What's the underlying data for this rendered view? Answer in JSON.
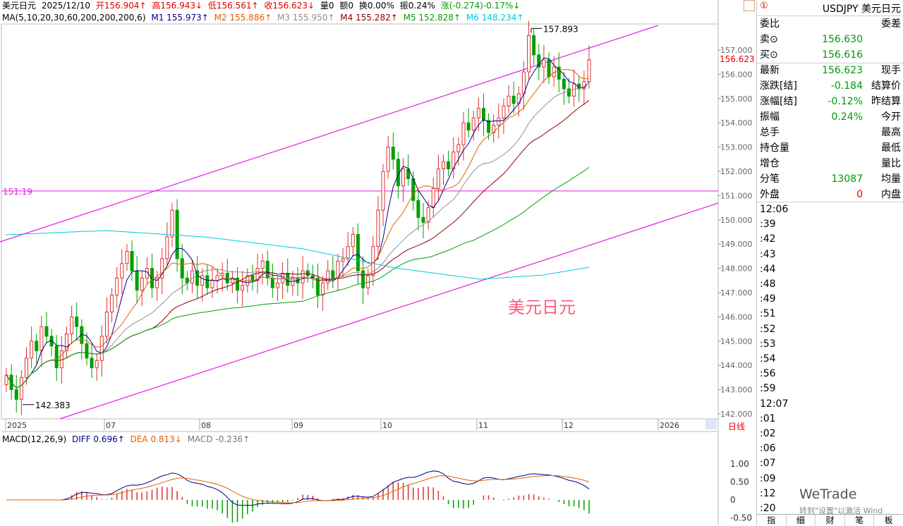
{
  "header": {
    "name": "美元日元",
    "date": "2025/12/10",
    "open": "开156.904↑",
    "high": "高156.943↓",
    "low": "低156.561↑",
    "close": "收156.623↓",
    "vol": "量0",
    "amt": "额0",
    "turnover": "换0.00%",
    "amplitude": "振0.24%",
    "change": "涨(-0.274)-0.17%↓"
  },
  "ma": {
    "label": "MA(5,10,20,30,60,200,200,200,6)",
    "m1": "M1 155.973↑",
    "m2": "M2 155.886↑",
    "m3": "M3 155.950↑",
    "m4": "M4 155.282↑",
    "m5": "M5 152.828↑",
    "m6": "M6 148.234↑",
    "colors": [
      "#00008b",
      "#e06000",
      "#909090",
      "#8b0000",
      "#00a000",
      "#00c8d8"
    ]
  },
  "chart_data": [
    {
      "type": "candlestick",
      "title": "美元日元",
      "yticks": [
        "157.000",
        "156.000",
        "155.000",
        "154.000",
        "153.000",
        "152.000",
        "151.000",
        "150.000",
        "149.000",
        "148.000",
        "147.000",
        "146.000",
        "145.000",
        "144.000",
        "143.000",
        "142.000"
      ],
      "xticks": [
        "2025",
        "07",
        "08",
        "09",
        "10",
        "11",
        "12",
        "2026"
      ],
      "ylim": [
        142.0,
        157.0
      ],
      "hline_value": 151.19,
      "hline_label": "151.19",
      "high_marker": "157.893",
      "low_marker": "142.383",
      "last_price_label": "156.623",
      "period_label": "日线",
      "close_series": [
        143.6,
        143.0,
        142.6,
        143.5,
        144.3,
        145.0,
        144.6,
        145.6,
        145.2,
        144.8,
        143.9,
        144.6,
        145.3,
        146.0,
        145.6,
        144.9,
        144.3,
        143.9,
        144.2,
        145.2,
        146.2,
        146.9,
        147.6,
        148.2,
        148.7,
        147.9,
        147.1,
        147.6,
        148.0,
        147.2,
        147.6,
        148.4,
        149.3,
        150.4,
        148.4,
        147.6,
        147.4,
        147.9,
        147.3,
        147.7,
        147.2,
        147.5,
        147.7,
        147.8,
        147.4,
        147.6,
        147.1,
        147.3,
        147.7,
        147.5,
        148.0,
        148.3,
        147.6,
        147.2,
        147.4,
        147.8,
        147.3,
        147.6,
        147.4,
        147.9,
        147.7,
        147.6,
        146.9,
        147.4,
        147.9,
        147.6,
        148.3,
        148.4,
        148.9,
        149.4,
        147.9,
        147.2,
        147.7,
        148.9,
        150.4,
        152.0,
        153.0,
        152.5,
        151.4,
        152.1,
        151.7,
        150.8,
        150.1,
        149.9,
        150.5,
        151.3,
        152.1,
        152.4,
        152.1,
        152.8,
        153.1,
        154.0,
        153.7,
        154.2,
        154.6,
        154.1,
        153.6,
        153.9,
        154.2,
        154.7,
        155.1,
        154.8,
        155.2,
        156.1,
        157.6,
        156.8,
        156.3,
        156.6,
        155.9,
        156.3,
        155.8,
        155.4,
        155.1,
        155.6,
        155.4,
        155.7,
        156.6
      ],
      "ma_values": {
        "M1": 155.973,
        "M2": 155.886,
        "M3": 155.95,
        "M4": 155.282,
        "M5": 152.828,
        "M6": 148.234
      }
    },
    {
      "type": "line",
      "title": "MACD(12,26,9)",
      "diff_label": "DIFF 0.696↑",
      "dea_label": "DEA 0.813↓",
      "macd_label": "MACD -0.236↑",
      "yticks": [
        "1.00",
        "0.50",
        "0",
        "-0.50"
      ],
      "ylim": [
        -0.5,
        1.0
      ]
    }
  ],
  "side": {
    "badge": "①",
    "symbol": "USDJPY 美元日元",
    "rows": [
      {
        "l": "委比",
        "v": "",
        "r": "委差"
      },
      {
        "l": "卖⊙",
        "v": "156.630",
        "r": ""
      },
      {
        "l": "买⊙",
        "v": "156.616",
        "r": ""
      },
      {
        "l": "最新",
        "v": "156.623",
        "r": "现手"
      },
      {
        "l": "涨跌[结]",
        "v": "-0.184",
        "r": "结算价"
      },
      {
        "l": "涨幅[结]",
        "v": "-0.12%",
        "r": "昨结算"
      },
      {
        "l": "振幅",
        "v": "0.24%",
        "r": "今开"
      },
      {
        "l": "总手",
        "v": "",
        "r": "最高"
      },
      {
        "l": "持仓量",
        "v": "",
        "r": "最低"
      },
      {
        "l": "增仓",
        "v": "",
        "r": "量比"
      },
      {
        "l": "分笔",
        "v": "13087",
        "r": "均量"
      },
      {
        "l": "外盘",
        "v": "0",
        "r": "内盘"
      }
    ],
    "ticks": [
      "12:06",
      ":39",
      ":42",
      ":43",
      ":44",
      ":48",
      ":49",
      ":51",
      ":52",
      ":53",
      ":54",
      ":56",
      ":59",
      "12:07",
      ":01",
      ":02",
      ":06",
      ":07",
      ":09",
      ":12",
      ":20"
    ],
    "tabs": [
      "指",
      "细",
      "财",
      "笔",
      "板"
    ],
    "watermark": "转到\"设置\"以激活 Wind",
    "wetrade": "WeTrade"
  }
}
